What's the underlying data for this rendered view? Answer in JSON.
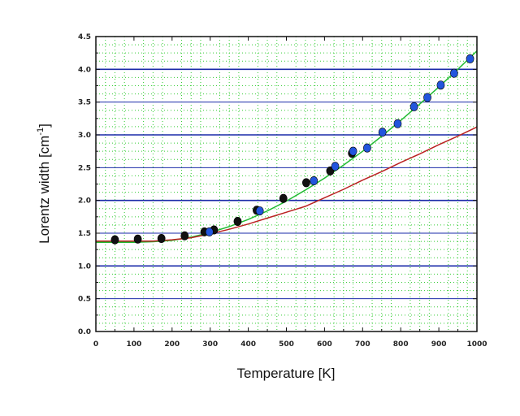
{
  "chart_data": {
    "type": "scatter",
    "xlabel": "Temperature [K]",
    "ylabel_main": "Lorentz width [cm",
    "ylabel_sup": "-1",
    "ylabel_close": "]",
    "xlim": [
      0,
      1000
    ],
    "ylim": [
      0,
      4.5
    ],
    "x_ticks": [
      0,
      100,
      200,
      300,
      400,
      500,
      600,
      700,
      800,
      900,
      1000
    ],
    "x_tick_labels": [
      "0",
      "100",
      "200",
      "300",
      "400",
      "500",
      "600",
      "700",
      "800",
      "900",
      "1000"
    ],
    "y_ticks": [
      0,
      0.5,
      1.0,
      1.5,
      2.0,
      2.5,
      3.0,
      3.5,
      4.0,
      4.5
    ],
    "y_tick_labels": [
      "0.0",
      "0.5",
      "1.0",
      "1.5",
      "2.0",
      "2.5",
      "3.0",
      "3.5",
      "4.0",
      "4.5"
    ],
    "grid": true,
    "series": [
      {
        "kind": "points",
        "color": "#111111",
        "x": [
          50,
          110,
          172,
          233,
          285,
          310,
          372,
          422,
          492,
          552,
          615,
          672
        ],
        "y": [
          1.4,
          1.41,
          1.42,
          1.46,
          1.52,
          1.55,
          1.68,
          1.85,
          2.03,
          2.27,
          2.45,
          2.72
        ]
      },
      {
        "kind": "points",
        "color": "#2255dd",
        "x": [
          298,
          430,
          572,
          628,
          675,
          712,
          752,
          792,
          835,
          870,
          905,
          940,
          982
        ],
        "y": [
          1.52,
          1.84,
          2.3,
          2.52,
          2.75,
          2.8,
          3.04,
          3.17,
          3.43,
          3.57,
          3.76,
          3.94,
          4.16
        ]
      },
      {
        "kind": "line",
        "color": "#22bb33",
        "x": [
          0,
          100,
          150,
          200,
          250,
          300,
          350,
          400,
          450,
          500,
          550,
          600,
          650,
          700,
          750,
          800,
          850,
          900,
          950,
          1000
        ],
        "y": [
          1.36,
          1.36,
          1.37,
          1.39,
          1.44,
          1.51,
          1.6,
          1.71,
          1.84,
          1.99,
          2.16,
          2.34,
          2.54,
          2.75,
          2.98,
          3.22,
          3.47,
          3.73,
          4.0,
          4.28
        ]
      },
      {
        "kind": "line",
        "color": "#bb2222",
        "x": [
          0,
          100,
          150,
          200,
          250,
          300,
          350,
          400,
          450,
          500,
          550,
          600,
          650,
          700,
          750,
          800,
          850,
          900,
          950,
          1000
        ],
        "y": [
          1.38,
          1.38,
          1.38,
          1.4,
          1.43,
          1.49,
          1.56,
          1.64,
          1.73,
          1.82,
          1.91,
          2.04,
          2.17,
          2.31,
          2.44,
          2.58,
          2.71,
          2.85,
          2.98,
          3.12
        ]
      }
    ],
    "colors": {
      "major_grid": "#1a2aa8",
      "minor_grid": "#33cc33",
      "axis": "#111111"
    }
  }
}
